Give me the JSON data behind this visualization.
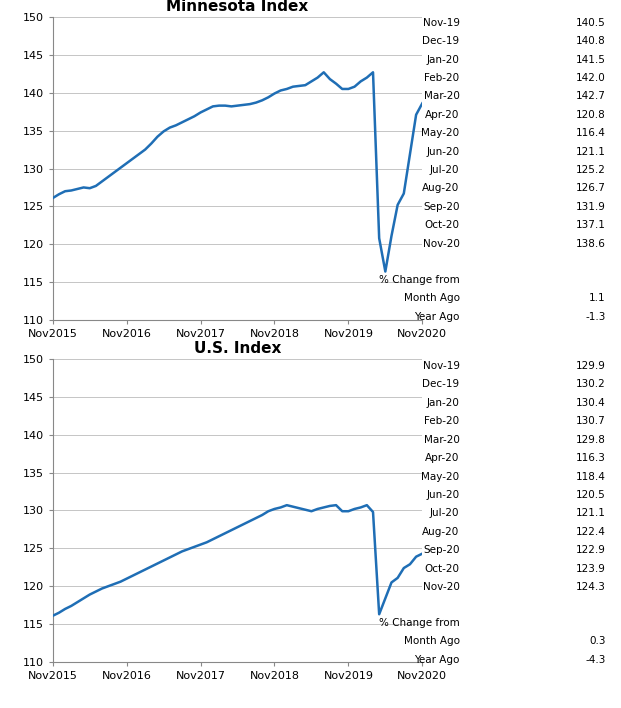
{
  "mn_title": "Minnesota Index",
  "us_title": "U.S. Index",
  "line_color": "#1F6EB5",
  "line_width": 1.8,
  "ylim": [
    110,
    150
  ],
  "yticks": [
    110,
    115,
    120,
    125,
    130,
    135,
    140,
    145,
    150
  ],
  "xtick_labels": [
    "Nov2015",
    "Nov2016",
    "Nov2017",
    "Nov2018",
    "Nov2019",
    "Nov2020"
  ],
  "mn_table_labels": [
    "Nov-19",
    "Dec-19",
    "Jan-20",
    "Feb-20",
    "Mar-20",
    "Apr-20",
    "May-20",
    "Jun-20",
    "Jul-20",
    "Aug-20",
    "Sep-20",
    "Oct-20",
    "Nov-20"
  ],
  "mn_table_values": [
    140.5,
    140.8,
    141.5,
    142.0,
    142.7,
    120.8,
    116.4,
    121.1,
    125.2,
    126.7,
    131.9,
    137.1,
    138.6
  ],
  "mn_pct_month": "1.1",
  "mn_pct_year": "-1.3",
  "us_table_labels": [
    "Nov-19",
    "Dec-19",
    "Jan-20",
    "Feb-20",
    "Mar-20",
    "Apr-20",
    "May-20",
    "Jun-20",
    "Jul-20",
    "Aug-20",
    "Sep-20",
    "Oct-20",
    "Nov-20"
  ],
  "us_table_values": [
    129.9,
    130.2,
    130.4,
    130.7,
    129.8,
    116.3,
    118.4,
    120.5,
    121.1,
    122.4,
    122.9,
    123.9,
    124.3
  ],
  "us_pct_month": "0.3",
  "us_pct_year": "-4.3",
  "mn_y": [
    126.1,
    126.6,
    127.0,
    127.1,
    127.3,
    127.5,
    127.4,
    127.7,
    128.3,
    128.9,
    129.5,
    130.1,
    130.7,
    131.3,
    131.9,
    132.5,
    133.3,
    134.2,
    134.9,
    135.4,
    135.7,
    136.1,
    136.5,
    136.9,
    137.4,
    137.8,
    138.2,
    138.3,
    138.3,
    138.2,
    138.3,
    138.4,
    138.5,
    138.7,
    139.0,
    139.4,
    139.9,
    140.3,
    140.5,
    140.8,
    140.9,
    141.0,
    141.5,
    142.0,
    142.7,
    141.8,
    141.2,
    140.5,
    140.5,
    140.8,
    141.5,
    142.0,
    142.7,
    120.8,
    116.4,
    121.1,
    125.2,
    126.7,
    131.9,
    137.1,
    138.6
  ],
  "us_y": [
    116.1,
    116.5,
    117.0,
    117.4,
    117.9,
    118.4,
    118.9,
    119.3,
    119.7,
    120.0,
    120.3,
    120.6,
    121.0,
    121.4,
    121.8,
    122.2,
    122.6,
    123.0,
    123.4,
    123.8,
    124.2,
    124.6,
    124.9,
    125.2,
    125.5,
    125.8,
    126.2,
    126.6,
    127.0,
    127.4,
    127.8,
    128.2,
    128.6,
    129.0,
    129.4,
    129.9,
    130.2,
    130.4,
    130.7,
    130.5,
    130.3,
    130.1,
    129.9,
    130.2,
    130.4,
    130.6,
    130.7,
    129.9,
    129.9,
    130.2,
    130.4,
    130.7,
    129.8,
    116.3,
    118.4,
    120.5,
    121.1,
    122.4,
    122.9,
    123.9,
    124.3
  ],
  "background_color": "#ffffff",
  "grid_color": "#bbbbbb"
}
